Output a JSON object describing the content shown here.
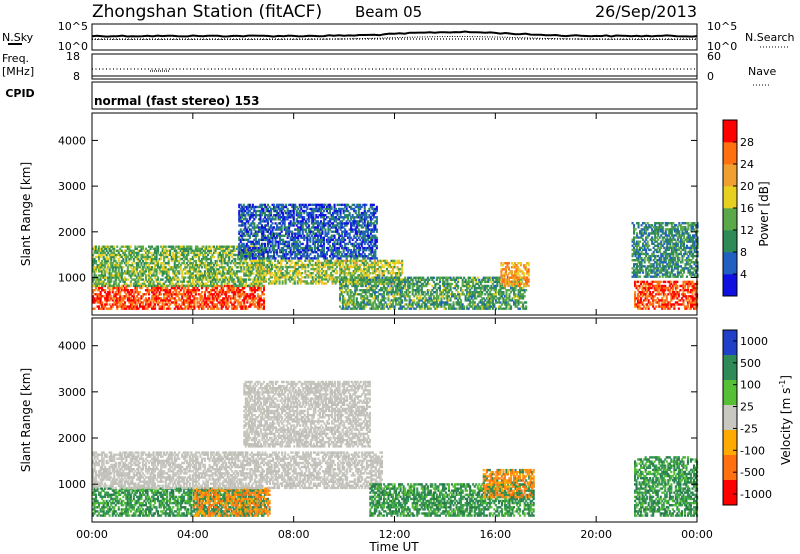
{
  "header": {
    "station": "Zhongshan Station (fitACF)",
    "beam": "Beam 05",
    "date": "26/Sep/2013"
  },
  "top_panels": {
    "nsky_label": "N.Sky",
    "nsky_ticks": [
      "10^5",
      "10^0"
    ],
    "nsearch_label": "N.Search",
    "nsearch_ticks": [
      "10^5",
      "10^0"
    ],
    "freq_label": "Freq.",
    "freq_unit": "[MHz]",
    "freq_ticks": [
      "18",
      "8"
    ],
    "nave_label": "Nave",
    "nave_ticks": [
      "60",
      "0"
    ],
    "cpid_label": "CPID",
    "cpid_text": "normal (fast stereo) 153"
  },
  "chart_data": [
    {
      "type": "heatmap",
      "name": "power-panel",
      "xlabel": "",
      "ylabel": "Slant Range [km]",
      "yticks": [
        "1000",
        "2000",
        "3000",
        "4000"
      ],
      "xlim": [
        0,
        24
      ],
      "ylim": [
        180,
        4600
      ],
      "colorbar": {
        "label": "Power [dB]",
        "ticks": [
          "4",
          "8",
          "12",
          "16",
          "20",
          "24",
          "28"
        ],
        "range": [
          0,
          32
        ],
        "colors": [
          "#1010e0",
          "#2060c0",
          "#2e8b57",
          "#5aa848",
          "#e8d020",
          "#f0a030",
          "#ff7010",
          "#ff0000"
        ]
      },
      "features": [
        {
          "t": [
            0.0,
            6.8
          ],
          "range_km": [
            300,
            800
          ],
          "level": 28
        },
        {
          "t": [
            0.0,
            6.8
          ],
          "range_km": [
            800,
            1700
          ],
          "level": 14
        },
        {
          "t": [
            6.5,
            12.3
          ],
          "range_km": [
            850,
            1350
          ],
          "level": 16
        },
        {
          "t": [
            5.8,
            11.3
          ],
          "range_km": [
            1400,
            2600
          ],
          "level": 6
        },
        {
          "t": [
            9.8,
            17.2
          ],
          "range_km": [
            300,
            1000
          ],
          "level": 12
        },
        {
          "t": [
            16.2,
            17.3
          ],
          "range_km": [
            800,
            1300
          ],
          "level": 22
        },
        {
          "t": [
            21.5,
            24.0
          ],
          "range_km": [
            300,
            900
          ],
          "level": 28
        },
        {
          "t": [
            21.4,
            24.0
          ],
          "range_km": [
            1000,
            2200
          ],
          "level": 10
        }
      ]
    },
    {
      "type": "heatmap",
      "name": "velocity-panel",
      "xlabel": "Time UT",
      "ylabel": "Slant Range [km]",
      "yticks": [
        "1000",
        "2000",
        "3000",
        "4000"
      ],
      "xticks": [
        "00:00",
        "04:00",
        "08:00",
        "12:00",
        "16:00",
        "20:00",
        "00:00"
      ],
      "xlim": [
        0,
        24
      ],
      "ylim": [
        180,
        4600
      ],
      "colorbar": {
        "label": "Velocity",
        "unit": "[m s",
        "unit_sup": "-1",
        "unit_end": "]",
        "ticks": [
          "1000",
          "500",
          "100",
          "25",
          "-25",
          "-100",
          "-500",
          "-1000"
        ],
        "colors": [
          "#2040c8",
          "#2e8b57",
          "#55c035",
          "#c8c8c0",
          "#ffaa00",
          "#ff7010",
          "#ff0000"
        ]
      },
      "features": [
        {
          "t": [
            0.0,
            6.8
          ],
          "range_km": [
            300,
            900
          ],
          "class": "green"
        },
        {
          "t": [
            4.0,
            7.0
          ],
          "range_km": [
            300,
            900
          ],
          "class": "orange"
        },
        {
          "t": [
            0.0,
            11.5
          ],
          "range_km": [
            900,
            1700
          ],
          "class": "grey"
        },
        {
          "t": [
            6.0,
            11.0
          ],
          "range_km": [
            1800,
            3200
          ],
          "class": "grey"
        },
        {
          "t": [
            11.0,
            17.5
          ],
          "range_km": [
            300,
            1000
          ],
          "class": "green"
        },
        {
          "t": [
            15.5,
            17.5
          ],
          "range_km": [
            700,
            1300
          ],
          "class": "orange"
        },
        {
          "t": [
            21.5,
            24.0
          ],
          "range_km": [
            300,
            1600
          ],
          "class": "green"
        }
      ]
    }
  ]
}
